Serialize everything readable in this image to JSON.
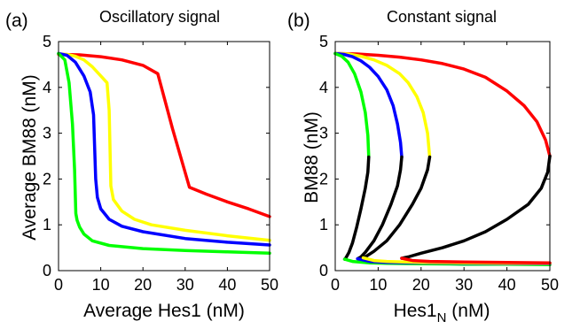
{
  "chart_data": [
    {
      "type": "line",
      "panel_label": "(a)",
      "title": "Oscillatory signal",
      "xlabel": "Average Hes1 (nM)",
      "ylabel": "Average BM88 (nM)",
      "xlim": [
        0,
        50
      ],
      "ylim": [
        0,
        5
      ],
      "xticks": [
        "0",
        "10",
        "20",
        "30",
        "40",
        "50"
      ],
      "yticks": [
        "0",
        "1",
        "2",
        "3",
        "4",
        "5"
      ],
      "grid": false,
      "series": [
        {
          "color": "#ff0000",
          "x": [
            0,
            5,
            10,
            15,
            20,
            23.5,
            27,
            31,
            35,
            40,
            45,
            50
          ],
          "y": [
            4.72,
            4.71,
            4.67,
            4.6,
            4.48,
            4.3,
            3.1,
            1.82,
            1.67,
            1.5,
            1.35,
            1.18
          ]
        },
        {
          "color": "#ffff00",
          "x": [
            0,
            2,
            4,
            6,
            8,
            10,
            11.5,
            12,
            12.4,
            13,
            15,
            18,
            22,
            30,
            40,
            50
          ],
          "y": [
            4.73,
            4.72,
            4.68,
            4.6,
            4.45,
            4.25,
            4.1,
            3.5,
            1.85,
            1.55,
            1.3,
            1.12,
            1.0,
            0.88,
            0.76,
            0.66
          ]
        },
        {
          "color": "#0000ff",
          "x": [
            0,
            2,
            4,
            6,
            7.5,
            8.3,
            8.8,
            9.2,
            10,
            12,
            15,
            20,
            30,
            40,
            50
          ],
          "y": [
            4.74,
            4.7,
            4.55,
            4.25,
            3.9,
            3.4,
            2.0,
            1.6,
            1.35,
            1.12,
            0.97,
            0.85,
            0.7,
            0.62,
            0.56
          ]
        },
        {
          "color": "#00ff00",
          "x": [
            0,
            1.5,
            2.5,
            3.3,
            3.8,
            4.1,
            4.4,
            5,
            6,
            8,
            12,
            20,
            30,
            40,
            50
          ],
          "y": [
            4.74,
            4.6,
            4.1,
            3.2,
            2.2,
            1.25,
            1.1,
            0.95,
            0.8,
            0.65,
            0.55,
            0.48,
            0.44,
            0.41,
            0.38
          ]
        }
      ]
    },
    {
      "type": "line",
      "panel_label": "(b)",
      "title": "Constant signal",
      "xlabel": "Hes1",
      "xlabel_subscript": "N",
      "xlabel_unit": " (nM)",
      "ylabel": "BM88 (nM)",
      "xlim": [
        0,
        50
      ],
      "ylim": [
        0,
        5
      ],
      "xticks": [
        "0",
        "10",
        "20",
        "30",
        "40",
        "50"
      ],
      "yticks": [
        "0",
        "1",
        "2",
        "3",
        "4",
        "5"
      ],
      "grid": false,
      "series": [
        {
          "color": "#ff0000",
          "x": [
            0,
            5,
            10,
            15,
            20,
            25,
            30,
            35,
            40,
            44,
            47,
            49,
            50
          ],
          "y": [
            4.74,
            4.73,
            4.7,
            4.66,
            4.6,
            4.52,
            4.4,
            4.22,
            3.92,
            3.6,
            3.25,
            2.85,
            2.5
          ]
        },
        {
          "color": "#ffff00",
          "x": [
            0,
            3,
            6,
            9,
            12,
            15,
            17,
            19,
            20.5,
            21.5,
            22
          ],
          "y": [
            4.74,
            4.73,
            4.68,
            4.6,
            4.48,
            4.3,
            4.1,
            3.8,
            3.45,
            3.0,
            2.48
          ]
        },
        {
          "color": "#0000ff",
          "x": [
            0,
            2,
            4,
            6,
            8,
            10,
            12,
            13.5,
            14.5,
            15.2,
            15.5
          ],
          "y": [
            4.74,
            4.72,
            4.67,
            4.58,
            4.44,
            4.24,
            3.95,
            3.6,
            3.2,
            2.8,
            2.48
          ]
        },
        {
          "color": "#00ff00",
          "x": [
            0,
            1.5,
            3,
            4.5,
            6,
            7,
            7.6,
            7.8
          ],
          "y": [
            4.74,
            4.68,
            4.55,
            4.3,
            3.9,
            3.45,
            2.95,
            2.48
          ]
        },
        {
          "color": "#000000",
          "x": [
            50,
            49.5,
            48,
            45,
            40,
            35,
            30,
            25,
            20,
            17,
            15.5
          ],
          "y": [
            2.5,
            2.15,
            1.8,
            1.45,
            1.12,
            0.85,
            0.65,
            0.5,
            0.38,
            0.3,
            0.27
          ]
        },
        {
          "color": "#000000",
          "x": [
            22,
            21.5,
            20,
            18,
            15,
            12,
            9,
            7,
            6.5
          ],
          "y": [
            2.48,
            2.2,
            1.8,
            1.45,
            1.0,
            0.65,
            0.42,
            0.3,
            0.28
          ]
        },
        {
          "color": "#000000",
          "x": [
            15.5,
            15.2,
            14.5,
            13,
            11,
            9,
            7,
            6,
            5.2
          ],
          "y": [
            2.48,
            2.2,
            1.85,
            1.45,
            1.0,
            0.65,
            0.4,
            0.3,
            0.26
          ]
        },
        {
          "color": "#000000",
          "x": [
            7.8,
            7.6,
            7,
            6,
            5,
            4,
            3.2,
            2.5,
            2.2
          ],
          "y": [
            2.48,
            2.15,
            1.8,
            1.35,
            0.95,
            0.6,
            0.4,
            0.28,
            0.25
          ]
        },
        {
          "color": "#00ff00",
          "x": [
            2.2,
            4,
            8,
            12,
            20,
            30,
            40,
            50
          ],
          "y": [
            0.25,
            0.2,
            0.17,
            0.16,
            0.15,
            0.14,
            0.14,
            0.13
          ]
        },
        {
          "color": "#0000ff",
          "x": [
            5.2,
            8,
            12,
            20,
            30,
            40,
            50
          ],
          "y": [
            0.26,
            0.2,
            0.18,
            0.17,
            0.16,
            0.15,
            0.15
          ]
        },
        {
          "color": "#ffff00",
          "x": [
            6.5,
            9,
            12,
            20,
            30,
            40,
            50
          ],
          "y": [
            0.28,
            0.22,
            0.2,
            0.18,
            0.17,
            0.16,
            0.16
          ]
        },
        {
          "color": "#ff0000",
          "x": [
            15.5,
            18,
            22,
            30,
            40,
            50
          ],
          "y": [
            0.27,
            0.22,
            0.2,
            0.19,
            0.18,
            0.17
          ]
        }
      ]
    }
  ]
}
